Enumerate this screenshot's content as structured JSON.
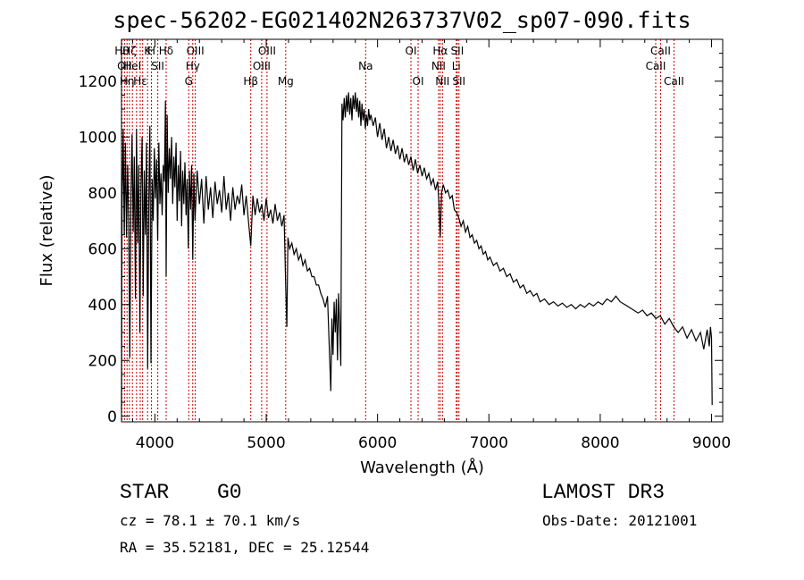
{
  "chart_data": {
    "type": "line",
    "title": "spec-56202-EG021402N263737V02_sp07-090.fits",
    "xlabel": "Wavelength (Å)",
    "ylabel": "Flux (relative)",
    "xlim": [
      3700,
      9100
    ],
    "ylim": [
      -20,
      1350
    ],
    "xticks": [
      4000,
      5000,
      6000,
      7000,
      8000,
      9000
    ],
    "yticks": [
      0,
      200,
      400,
      600,
      800,
      1000,
      1200
    ],
    "series": [
      {
        "name": "flux",
        "points": [
          [
            3700,
            20
          ],
          [
            3705,
            750
          ],
          [
            3715,
            1030
          ],
          [
            3725,
            650
          ],
          [
            3735,
            980
          ],
          [
            3745,
            640
          ],
          [
            3755,
            900
          ],
          [
            3765,
            700
          ],
          [
            3775,
            210
          ],
          [
            3785,
            780
          ],
          [
            3795,
            1010
          ],
          [
            3805,
            660
          ],
          [
            3815,
            930
          ],
          [
            3825,
            420
          ],
          [
            3835,
            1030
          ],
          [
            3845,
            620
          ],
          [
            3855,
            900
          ],
          [
            3865,
            300
          ],
          [
            3875,
            820
          ],
          [
            3885,
            1000
          ],
          [
            3895,
            430
          ],
          [
            3905,
            880
          ],
          [
            3915,
            650
          ],
          [
            3925,
            980
          ],
          [
            3935,
            170
          ],
          [
            3945,
            760
          ],
          [
            3955,
            1040
          ],
          [
            3965,
            190
          ],
          [
            3975,
            850
          ],
          [
            3985,
            700
          ],
          [
            3995,
            960
          ],
          [
            4005,
            780
          ],
          [
            4015,
            920
          ],
          [
            4025,
            630
          ],
          [
            4035,
            980
          ],
          [
            4045,
            760
          ],
          [
            4055,
            870
          ],
          [
            4065,
            720
          ],
          [
            4075,
            900
          ],
          [
            4085,
            840
          ],
          [
            4095,
            1130
          ],
          [
            4101,
            500
          ],
          [
            4110,
            1080
          ],
          [
            4120,
            800
          ],
          [
            4130,
            960
          ],
          [
            4140,
            850
          ],
          [
            4150,
            1000
          ],
          [
            4160,
            760
          ],
          [
            4170,
            930
          ],
          [
            4180,
            820
          ],
          [
            4190,
            980
          ],
          [
            4200,
            700
          ],
          [
            4210,
            900
          ],
          [
            4220,
            770
          ],
          [
            4230,
            950
          ],
          [
            4240,
            680
          ],
          [
            4250,
            880
          ],
          [
            4260,
            760
          ],
          [
            4270,
            910
          ],
          [
            4280,
            720
          ],
          [
            4290,
            850
          ],
          [
            4300,
            600
          ],
          [
            4310,
            880
          ],
          [
            4320,
            740
          ],
          [
            4330,
            900
          ],
          [
            4340,
            560
          ],
          [
            4350,
            870
          ],
          [
            4360,
            700
          ],
          [
            4380,
            880
          ],
          [
            4400,
            760
          ],
          [
            4420,
            850
          ],
          [
            4440,
            690
          ],
          [
            4460,
            860
          ],
          [
            4480,
            740
          ],
          [
            4500,
            820
          ],
          [
            4520,
            710
          ],
          [
            4540,
            840
          ],
          [
            4560,
            760
          ],
          [
            4580,
            810
          ],
          [
            4600,
            730
          ],
          [
            4620,
            860
          ],
          [
            4640,
            740
          ],
          [
            4660,
            800
          ],
          [
            4680,
            700
          ],
          [
            4700,
            820
          ],
          [
            4720,
            740
          ],
          [
            4740,
            790
          ],
          [
            4760,
            760
          ],
          [
            4780,
            830
          ],
          [
            4800,
            720
          ],
          [
            4820,
            790
          ],
          [
            4840,
            700
          ],
          [
            4861,
            610
          ],
          [
            4880,
            790
          ],
          [
            4900,
            720
          ],
          [
            4920,
            780
          ],
          [
            4940,
            730
          ],
          [
            4960,
            760
          ],
          [
            4980,
            700
          ],
          [
            5000,
            780
          ],
          [
            5020,
            710
          ],
          [
            5040,
            740
          ],
          [
            5060,
            690
          ],
          [
            5080,
            760
          ],
          [
            5100,
            700
          ],
          [
            5120,
            730
          ],
          [
            5140,
            680
          ],
          [
            5160,
            720
          ],
          [
            5175,
            470
          ],
          [
            5185,
            320
          ],
          [
            5195,
            640
          ],
          [
            5210,
            600
          ],
          [
            5230,
            620
          ],
          [
            5250,
            580
          ],
          [
            5270,
            600
          ],
          [
            5290,
            560
          ],
          [
            5310,
            580
          ],
          [
            5330,
            540
          ],
          [
            5350,
            560
          ],
          [
            5370,
            520
          ],
          [
            5390,
            530
          ],
          [
            5410,
            500
          ],
          [
            5430,
            500
          ],
          [
            5450,
            470
          ],
          [
            5470,
            470
          ],
          [
            5490,
            440
          ],
          [
            5510,
            420
          ],
          [
            5530,
            390
          ],
          [
            5550,
            430
          ],
          [
            5570,
            200
          ],
          [
            5580,
            90
          ],
          [
            5590,
            350
          ],
          [
            5600,
            220
          ],
          [
            5610,
            410
          ],
          [
            5620,
            300
          ],
          [
            5630,
            420
          ],
          [
            5640,
            200
          ],
          [
            5650,
            440
          ],
          [
            5660,
            320
          ],
          [
            5670,
            180
          ],
          [
            5680,
            1120
          ],
          [
            5690,
            1060
          ],
          [
            5700,
            1140
          ],
          [
            5710,
            1070
          ],
          [
            5720,
            1150
          ],
          [
            5730,
            1090
          ],
          [
            5740,
            1160
          ],
          [
            5750,
            1080
          ],
          [
            5760,
            1140
          ],
          [
            5770,
            1060
          ],
          [
            5780,
            1150
          ],
          [
            5790,
            1100
          ],
          [
            5800,
            1160
          ],
          [
            5810,
            1090
          ],
          [
            5820,
            1140
          ],
          [
            5830,
            1070
          ],
          [
            5840,
            1130
          ],
          [
            5850,
            1040
          ],
          [
            5860,
            1120
          ],
          [
            5870,
            1060
          ],
          [
            5880,
            1100
          ],
          [
            5890,
            1030
          ],
          [
            5900,
            1080
          ],
          [
            5910,
            1040
          ],
          [
            5920,
            1100
          ],
          [
            5930,
            1060
          ],
          [
            5940,
            1080
          ],
          [
            5960,
            1040
          ],
          [
            5980,
            1070
          ],
          [
            6000,
            1000
          ],
          [
            6020,
            1050
          ],
          [
            6040,
            990
          ],
          [
            6060,
            1030
          ],
          [
            6080,
            960
          ],
          [
            6100,
            1000
          ],
          [
            6120,
            950
          ],
          [
            6140,
            990
          ],
          [
            6160,
            940
          ],
          [
            6180,
            970
          ],
          [
            6200,
            920
          ],
          [
            6220,
            960
          ],
          [
            6240,
            910
          ],
          [
            6260,
            940
          ],
          [
            6280,
            900
          ],
          [
            6300,
            930
          ],
          [
            6320,
            880
          ],
          [
            6340,
            920
          ],
          [
            6360,
            870
          ],
          [
            6380,
            900
          ],
          [
            6400,
            860
          ],
          [
            6420,
            890
          ],
          [
            6440,
            850
          ],
          [
            6460,
            870
          ],
          [
            6480,
            830
          ],
          [
            6500,
            850
          ],
          [
            6520,
            810
          ],
          [
            6540,
            840
          ],
          [
            6550,
            770
          ],
          [
            6563,
            640
          ],
          [
            6575,
            800
          ],
          [
            6590,
            830
          ],
          [
            6610,
            800
          ],
          [
            6630,
            810
          ],
          [
            6650,
            780
          ],
          [
            6670,
            790
          ],
          [
            6690,
            740
          ],
          [
            6710,
            730
          ],
          [
            6730,
            710
          ],
          [
            6750,
            680
          ],
          [
            6770,
            700
          ],
          [
            6790,
            660
          ],
          [
            6810,
            680
          ],
          [
            6830,
            640
          ],
          [
            6850,
            650
          ],
          [
            6870,
            620
          ],
          [
            6890,
            630
          ],
          [
            6910,
            600
          ],
          [
            6930,
            610
          ],
          [
            6950,
            580
          ],
          [
            6970,
            590
          ],
          [
            6990,
            560
          ],
          [
            7010,
            570
          ],
          [
            7040,
            540
          ],
          [
            7070,
            550
          ],
          [
            7100,
            520
          ],
          [
            7130,
            530
          ],
          [
            7160,
            500
          ],
          [
            7190,
            510
          ],
          [
            7220,
            480
          ],
          [
            7250,
            490
          ],
          [
            7280,
            460
          ],
          [
            7310,
            470
          ],
          [
            7340,
            440
          ],
          [
            7370,
            450
          ],
          [
            7400,
            430
          ],
          [
            7430,
            440
          ],
          [
            7460,
            410
          ],
          [
            7500,
            420
          ],
          [
            7540,
            400
          ],
          [
            7580,
            410
          ],
          [
            7620,
            395
          ],
          [
            7660,
            405
          ],
          [
            7700,
            390
          ],
          [
            7740,
            400
          ],
          [
            7780,
            385
          ],
          [
            7820,
            400
          ],
          [
            7860,
            390
          ],
          [
            7900,
            405
          ],
          [
            7940,
            395
          ],
          [
            7980,
            410
          ],
          [
            8020,
            400
          ],
          [
            8060,
            420
          ],
          [
            8100,
            410
          ],
          [
            8140,
            430
          ],
          [
            8180,
            410
          ],
          [
            8220,
            400
          ],
          [
            8260,
            390
          ],
          [
            8300,
            380
          ],
          [
            8340,
            370
          ],
          [
            8380,
            380
          ],
          [
            8420,
            360
          ],
          [
            8460,
            370
          ],
          [
            8500,
            350
          ],
          [
            8540,
            360
          ],
          [
            8580,
            330
          ],
          [
            8620,
            350
          ],
          [
            8660,
            320
          ],
          [
            8700,
            300
          ],
          [
            8740,
            320
          ],
          [
            8780,
            280
          ],
          [
            8820,
            310
          ],
          [
            8860,
            270
          ],
          [
            8900,
            300
          ],
          [
            8930,
            240
          ],
          [
            8960,
            310
          ],
          [
            8980,
            250
          ],
          [
            8990,
            320
          ],
          [
            9000,
            280
          ],
          [
            9005,
            40
          ]
        ]
      }
    ],
    "line_markers": [
      {
        "w": 3704,
        "label": "Hθ",
        "row": 0
      },
      {
        "w": 3727,
        "label": "OII",
        "row": 1
      },
      {
        "w": 3750,
        "label": "Hη",
        "row": 2
      },
      {
        "w": 3771,
        "label": "Hζ",
        "row": 0
      },
      {
        "w": 3798,
        "label": "HeI",
        "row": 1
      },
      {
        "w": 3835,
        "label": "",
        "row": 2
      },
      {
        "w": 3868,
        "label": "Hε",
        "row": 2
      },
      {
        "w": 3890,
        "label": "",
        "row": 0
      },
      {
        "w": 3934,
        "label": "K",
        "row": 0
      },
      {
        "w": 3969,
        "label": "H",
        "row": 0
      },
      {
        "w": 4026,
        "label": "SII",
        "row": 1
      },
      {
        "w": 4101,
        "label": "Hδ",
        "row": 0
      },
      {
        "w": 4304,
        "label": "G",
        "row": 2
      },
      {
        "w": 4340,
        "label": "Hγ",
        "row": 1
      },
      {
        "w": 4363,
        "label": "OIII",
        "row": 0
      },
      {
        "w": 4861,
        "label": "Hβ",
        "row": 2
      },
      {
        "w": 4959,
        "label": "OIII",
        "row": 1
      },
      {
        "w": 5007,
        "label": "OIII",
        "row": 0
      },
      {
        "w": 5175,
        "label": "Mg",
        "row": 2
      },
      {
        "w": 5893,
        "label": "Na",
        "row": 1
      },
      {
        "w": 6300,
        "label": "OI",
        "row": 0
      },
      {
        "w": 6364,
        "label": "OI",
        "row": 2
      },
      {
        "w": 6548,
        "label": "NII",
        "row": 1
      },
      {
        "w": 6563,
        "label": "Hα",
        "row": 0
      },
      {
        "w": 6583,
        "label": "NII",
        "row": 2
      },
      {
        "w": 6707,
        "label": "Li",
        "row": 1
      },
      {
        "w": 6716,
        "label": "SII",
        "row": 0
      },
      {
        "w": 6731,
        "label": "SII",
        "row": 2
      },
      {
        "w": 8498,
        "label": "CaII",
        "row": 1
      },
      {
        "w": 8542,
        "label": "CaII",
        "row": 0
      },
      {
        "w": 8662,
        "label": "CaII",
        "row": 2
      }
    ]
  },
  "info": {
    "class_label": "STAR",
    "subclass": "G0",
    "survey": "LAMOST DR3",
    "cz_line": "cz = 78.1 ± 70.1 km/s",
    "obs_date": "Obs-Date: 20121001",
    "radec_line": "RA =  35.52181, DEC =  25.12544"
  },
  "colors": {
    "axis": "#000000",
    "spectrum": "#000000",
    "markers": "#cc0000"
  }
}
